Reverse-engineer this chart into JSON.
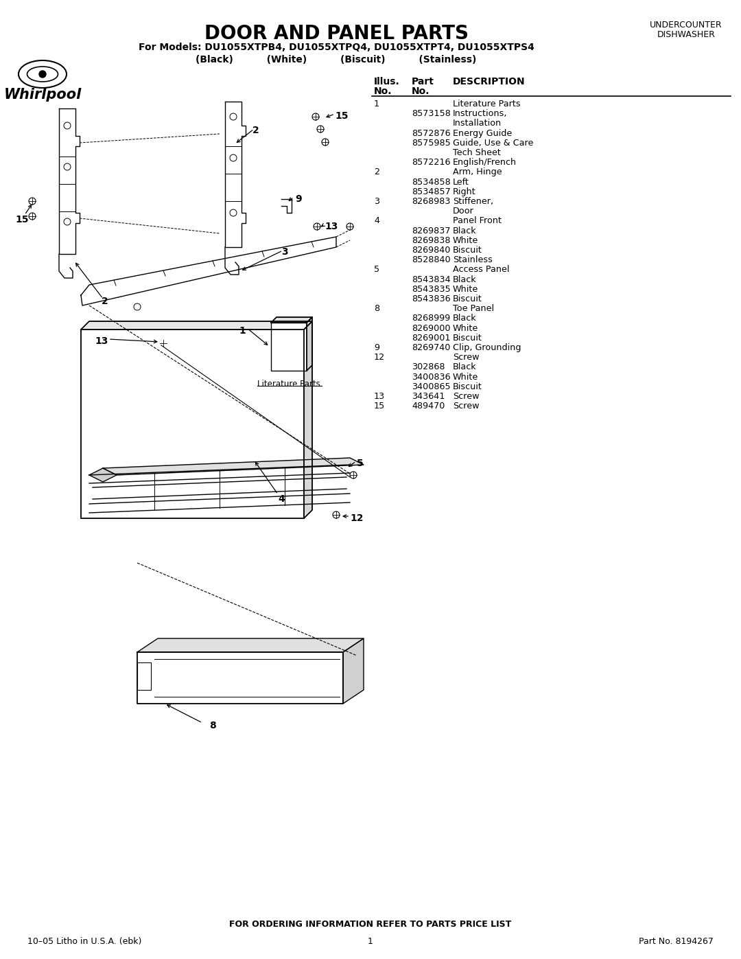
{
  "title": "DOOR AND PANEL PARTS",
  "models_line": "For Models: DU1055XTPB4, DU1055XTPQ4, DU1055XTPT4, DU1055XTPS4",
  "colors_line": "(Black)          (White)          (Biscuit)          (Stainless)",
  "footer_left": "10–05 Litho in U.S.A. (ebk)",
  "footer_center": "1",
  "footer_right": "Part No. 8194267",
  "footer_order": "FOR ORDERING INFORMATION REFER TO PARTS PRICE LIST",
  "parts_table": [
    {
      "illus": "1",
      "part": "",
      "desc": "Literature Parts"
    },
    {
      "illus": "",
      "part": "8573158",
      "desc": "Instructions,"
    },
    {
      "illus": "",
      "part": "",
      "desc": "Installation"
    },
    {
      "illus": "",
      "part": "8572876",
      "desc": "Energy Guide"
    },
    {
      "illus": "",
      "part": "8575985",
      "desc": "Guide, Use & Care"
    },
    {
      "illus": "",
      "part": "",
      "desc": "Tech Sheet"
    },
    {
      "illus": "",
      "part": "8572216",
      "desc": "English/French"
    },
    {
      "illus": "2",
      "part": "",
      "desc": "Arm, Hinge"
    },
    {
      "illus": "",
      "part": "8534858",
      "desc": "Left"
    },
    {
      "illus": "",
      "part": "8534857",
      "desc": "Right"
    },
    {
      "illus": "3",
      "part": "8268983",
      "desc": "Stiffener,"
    },
    {
      "illus": "",
      "part": "",
      "desc": "Door"
    },
    {
      "illus": "4",
      "part": "",
      "desc": "Panel Front"
    },
    {
      "illus": "",
      "part": "8269837",
      "desc": "Black"
    },
    {
      "illus": "",
      "part": "8269838",
      "desc": "White"
    },
    {
      "illus": "",
      "part": "8269840",
      "desc": "Biscuit"
    },
    {
      "illus": "",
      "part": "8528840",
      "desc": "Stainless"
    },
    {
      "illus": "5",
      "part": "",
      "desc": "Access Panel"
    },
    {
      "illus": "",
      "part": "8543834",
      "desc": "Black"
    },
    {
      "illus": "",
      "part": "8543835",
      "desc": "White"
    },
    {
      "illus": "",
      "part": "8543836",
      "desc": "Biscuit"
    },
    {
      "illus": "8",
      "part": "",
      "desc": "Toe Panel"
    },
    {
      "illus": "",
      "part": "8268999",
      "desc": "Black"
    },
    {
      "illus": "",
      "part": "8269000",
      "desc": "White"
    },
    {
      "illus": "",
      "part": "8269001",
      "desc": "Biscuit"
    },
    {
      "illus": "9",
      "part": "8269740",
      "desc": "Clip, Grounding"
    },
    {
      "illus": "12",
      "part": "",
      "desc": "Screw"
    },
    {
      "illus": "",
      "part": "302868",
      "desc": "Black"
    },
    {
      "illus": "",
      "part": "3400836",
      "desc": "White"
    },
    {
      "illus": "",
      "part": "3400865",
      "desc": "Biscuit"
    },
    {
      "illus": "13",
      "part": "343641",
      "desc": "Screw"
    },
    {
      "illus": "15",
      "part": "489470",
      "desc": "Screw"
    }
  ],
  "bg_color": "#ffffff",
  "text_color": "#000000"
}
